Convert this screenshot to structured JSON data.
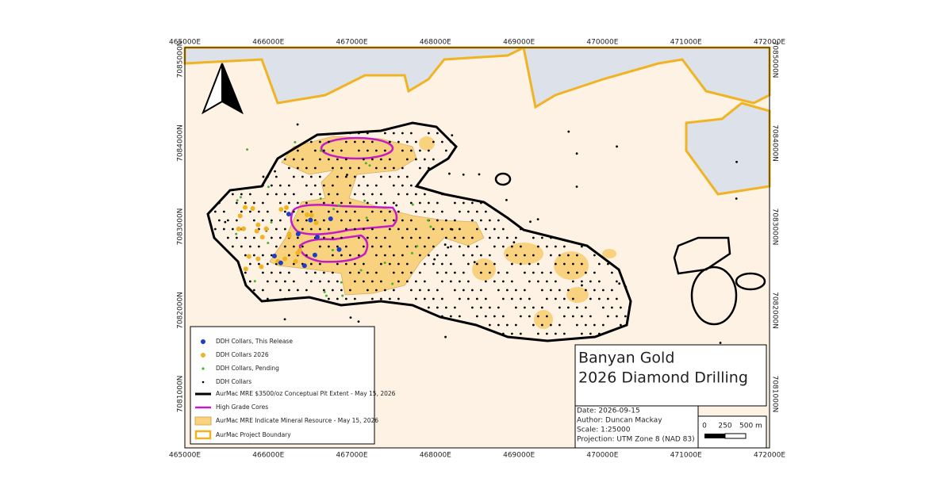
{
  "frame": {
    "eastings": [
      "465000E",
      "466000E",
      "467000E",
      "468000E",
      "469000E",
      "470000E",
      "471000E",
      "472000E"
    ],
    "northings": [
      "7085000N",
      "7084000N",
      "7083000N",
      "7082000N",
      "7081000N"
    ]
  },
  "legend": [
    "DDH Collars, This Release",
    "DDH Collars 2026",
    "DDH Collars, Pending",
    "DDH Collars",
    "AurMac MRE $3500/oz Conceptual Pit Extent - May 15, 2026",
    "High Grade Cores",
    "AurMac MRE Indicate Mineral Resource - May 15, 2026",
    "AurMac Project Boundary"
  ],
  "title_block": {
    "title_line1": "Banyan Gold",
    "title_line2": "2026 Diamond Drilling",
    "date": "Date: 2026-09-15",
    "author": "Author: Duncan Mackay",
    "scale": "Scale: 1:25000",
    "projection": "Projection: UTM Zone 8 (NAD 83)"
  },
  "scale_bar": [
    "0",
    "250",
    "500 m"
  ]
}
